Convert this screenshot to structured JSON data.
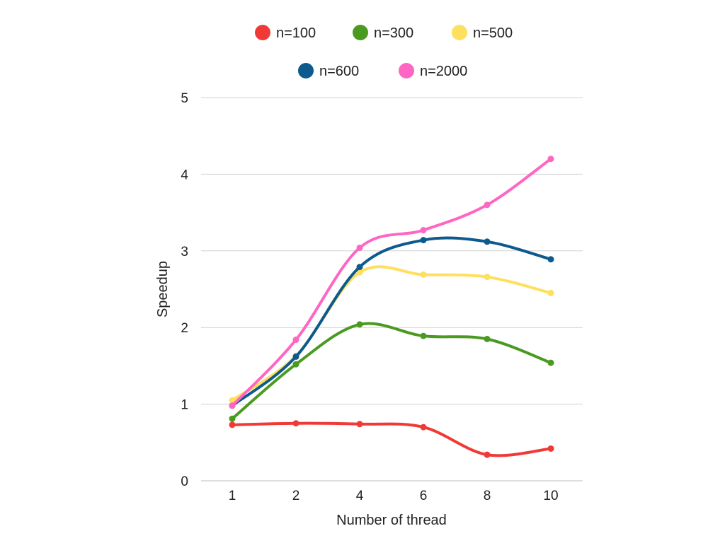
{
  "chart_data": {
    "type": "line",
    "title": "",
    "xlabel": "Number of thread",
    "ylabel": "Speedup",
    "categories": [
      "1",
      "2",
      "4",
      "6",
      "8",
      "10"
    ],
    "ylim": [
      0,
      5
    ],
    "yticks": [
      "0",
      "1",
      "2",
      "3",
      "4",
      "5"
    ],
    "grid": true,
    "legend_position": "top",
    "smooth": true,
    "series": [
      {
        "name": "n=100",
        "color": "#f03a37",
        "values": [
          0.73,
          0.75,
          0.74,
          0.7,
          0.34,
          0.42
        ]
      },
      {
        "name": "n=300",
        "color": "#4a9a22",
        "values": [
          0.81,
          1.52,
          2.04,
          1.89,
          1.85,
          1.54
        ]
      },
      {
        "name": "n=500",
        "color": "#ffdf5e",
        "values": [
          1.05,
          1.63,
          2.72,
          2.69,
          2.66,
          2.45
        ]
      },
      {
        "name": "n=600",
        "color": "#0d5a8e",
        "values": [
          0.98,
          1.62,
          2.79,
          3.14,
          3.12,
          2.89
        ]
      },
      {
        "name": "n=2000",
        "color": "#ff66c4",
        "values": [
          0.98,
          1.84,
          3.04,
          3.27,
          3.6,
          4.2
        ]
      }
    ]
  }
}
